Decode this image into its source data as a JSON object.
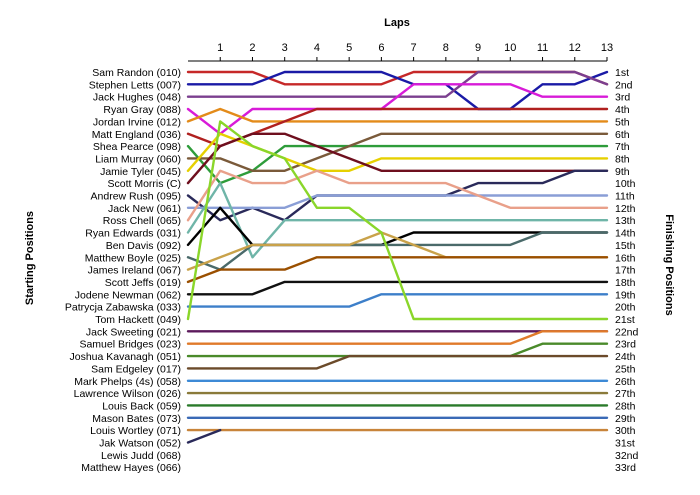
{
  "chart_data": {
    "type": "line",
    "title": "",
    "xlabel": "Laps",
    "ylabel_left": "Starting Positions",
    "ylabel_right": "Finishing Positions",
    "laps": [
      1,
      2,
      3,
      4,
      5,
      6,
      7,
      8,
      9,
      10,
      11,
      12,
      13
    ],
    "xlim": [
      0,
      13
    ],
    "ylim": [
      1,
      33
    ],
    "y_inverted": true,
    "grid": false,
    "starting_grid": [
      "Sam Randon (010)",
      "Stephen Letts (007)",
      "Jack Hughes (048)",
      "Ryan Gray (088)",
      "Jordan Irvine (012)",
      "Matt England (036)",
      "Shea Pearce (098)",
      "Liam Murray (060)",
      "Jamie Tyler (045)",
      "Scott Morris (C)",
      "Andrew Rush (095)",
      "Jack New (061)",
      "Ross Chell (065)",
      "Ryan Edwards (031)",
      "Ben Davis (092)",
      "Matthew Boyle (025)",
      "James Ireland (067)",
      "Scott Jeffs (019)",
      "Jodene Newman (062)",
      "Patrycja Zabawska (033)",
      "Tom Hackett (049)",
      "Jack Sweeting (021)",
      "Samuel Bridges (023)",
      "Joshua Kavanagh (051)",
      "Sam Edgeley (017)",
      "Mark Phelps (4s) (058)",
      "Lawrence Wilson (026)",
      "Louis Back (059)",
      "Mason Bates (073)",
      "Louis Wortley (071)",
      "Jak Watson (052)",
      "Lewis Judd (068)",
      "Matthew Hayes (066)"
    ],
    "finishing_positions": [
      "1st",
      "2nd",
      "3rd",
      "4th",
      "5th",
      "6th",
      "7th",
      "8th",
      "9th",
      "10th",
      "11th",
      "12th",
      "13th",
      "14th",
      "15th",
      "16th",
      "17th",
      "18th",
      "19th",
      "20th",
      "21st",
      "22nd",
      "23rd",
      "24th",
      "25th",
      "26th",
      "27th",
      "28th",
      "29th",
      "30th",
      "31st",
      "32nd",
      "33rd"
    ],
    "series": [
      {
        "start": 1,
        "positions": [
          1,
          1,
          2,
          2,
          2,
          2,
          1,
          1,
          1,
          1,
          1,
          1,
          2
        ],
        "color": "#c62828"
      },
      {
        "start": 2,
        "positions": [
          2,
          2,
          1,
          1,
          1,
          1,
          2,
          2,
          4,
          4,
          2,
          2,
          1
        ],
        "color": "#1a1aa6"
      },
      {
        "start": 3,
        "positions": [
          3,
          3,
          3,
          3,
          3,
          3,
          3,
          3,
          1,
          1,
          1,
          1,
          2
        ],
        "color": "#7b3f8f"
      },
      {
        "start": 4,
        "positions": [
          6,
          4,
          4,
          4,
          4,
          4,
          2,
          2,
          2,
          2,
          3,
          3,
          3
        ],
        "color": "#d81bd8"
      },
      {
        "start": 5,
        "positions": [
          4,
          5,
          5,
          5,
          5,
          5,
          5,
          5,
          5,
          5,
          5,
          5,
          5
        ],
        "color": "#e38b1a"
      },
      {
        "start": 6,
        "positions": [
          7,
          6,
          5,
          4,
          4,
          4,
          4,
          4,
          4,
          4,
          4,
          4,
          4
        ],
        "color": "#b0201f"
      },
      {
        "start": 7,
        "positions": [
          10,
          9,
          7,
          7,
          7,
          7,
          7,
          7,
          7,
          7,
          7,
          7,
          7
        ],
        "color": "#2e9c3a"
      },
      {
        "start": 8,
        "positions": [
          8,
          9,
          9,
          8,
          7,
          6,
          6,
          6,
          6,
          6,
          6,
          6,
          6
        ],
        "color": "#7a5a3a"
      },
      {
        "start": 9,
        "positions": [
          6,
          7,
          8,
          9,
          9,
          8,
          8,
          8,
          8,
          8,
          8,
          8,
          8
        ],
        "color": "#e6d000"
      },
      {
        "start": 10,
        "positions": [
          7,
          6,
          6,
          7,
          8,
          9,
          9,
          9,
          9,
          9,
          9,
          9,
          9
        ],
        "color": "#6e0f1e"
      },
      {
        "start": 11,
        "positions": [
          13,
          12,
          13,
          11,
          11,
          11,
          11,
          11,
          10,
          10,
          10,
          9,
          9
        ],
        "color": "#2a2a5a"
      },
      {
        "start": 12,
        "positions": [
          12,
          12,
          12,
          11,
          11,
          11,
          11,
          11,
          11,
          11,
          11,
          11,
          11
        ],
        "color": "#8a9ed6"
      },
      {
        "start": 13,
        "positions": [
          9,
          10,
          10,
          9,
          10,
          10,
          10,
          10,
          11,
          12,
          12,
          12,
          12
        ],
        "color": "#e9a08a"
      },
      {
        "start": 14,
        "positions": [
          10,
          16,
          13,
          13,
          13,
          13,
          13,
          13,
          13,
          13,
          13,
          13,
          13
        ],
        "color": "#6fb5a8"
      },
      {
        "start": 15,
        "positions": [
          12,
          15,
          15,
          15,
          15,
          15,
          14,
          14,
          14,
          14,
          14,
          14,
          14
        ],
        "color": "#000000"
      },
      {
        "start": 16,
        "positions": [
          17,
          15,
          15,
          15,
          15,
          15,
          15,
          15,
          15,
          15,
          14,
          14,
          14
        ],
        "color": "#4a6a6a"
      },
      {
        "start": 17,
        "positions": [
          16,
          15,
          15,
          15,
          15,
          14,
          15,
          16,
          16,
          16,
          16,
          16,
          16
        ],
        "color": "#c9a24a"
      },
      {
        "start": 18,
        "positions": [
          17,
          17,
          17,
          16,
          16,
          16,
          16,
          16,
          16,
          16,
          16,
          16,
          16
        ],
        "color": "#9a4f00"
      },
      {
        "start": 19,
        "positions": [
          19,
          19,
          18,
          18,
          18,
          18,
          18,
          18,
          18,
          18,
          18,
          18,
          18
        ],
        "color": "#111111"
      },
      {
        "start": 20,
        "positions": [
          20,
          20,
          20,
          20,
          20,
          19,
          19,
          19,
          19,
          19,
          19,
          19,
          19
        ],
        "color": "#3d7fc9"
      },
      {
        "start": 21,
        "positions": [
          5,
          7,
          8,
          12,
          12,
          14,
          21,
          21,
          21,
          21,
          21,
          21,
          21
        ],
        "color": "#8ad62a"
      },
      {
        "start": 22,
        "positions": [
          22,
          22,
          22,
          22,
          22,
          22,
          22,
          22,
          22,
          22,
          22,
          22,
          22
        ],
        "color": "#5c1a5c"
      },
      {
        "start": 23,
        "positions": [
          23,
          23,
          23,
          23,
          23,
          23,
          23,
          23,
          23,
          23,
          22,
          22,
          22
        ],
        "color": "#e07a2a"
      },
      {
        "start": 24,
        "positions": [
          24,
          24,
          24,
          24,
          24,
          24,
          24,
          24,
          24,
          24,
          23,
          23,
          23
        ],
        "color": "#4a8a2a"
      },
      {
        "start": 25,
        "positions": [
          25,
          25,
          25,
          25,
          24,
          24,
          24,
          24,
          24,
          24,
          24,
          24,
          24
        ],
        "color": "#6b4a2a"
      },
      {
        "start": 26,
        "positions": [
          26,
          26,
          26,
          26,
          26,
          26,
          26,
          26,
          26,
          26,
          26,
          26,
          26
        ],
        "color": "#3d8ad6"
      },
      {
        "start": 27,
        "positions": [
          27,
          27,
          27,
          27,
          27,
          27,
          27,
          27,
          27,
          27,
          27,
          27,
          27
        ],
        "color": "#8a7a3a"
      },
      {
        "start": 28,
        "positions": [
          28,
          28,
          28,
          28,
          28,
          28,
          28,
          28,
          28,
          28,
          28,
          28,
          28
        ],
        "color": "#2a7a2a"
      },
      {
        "start": 29,
        "positions": [
          29,
          29,
          29,
          29,
          29,
          29,
          29,
          29,
          29,
          29,
          29,
          29,
          29
        ],
        "color": "#3a6ab6"
      },
      {
        "start": 30,
        "positions": [
          30,
          30,
          30,
          30,
          30,
          30,
          30,
          30,
          30,
          30,
          30,
          30,
          30
        ],
        "color": "#c8843a"
      },
      {
        "start": 31,
        "positions": [
          30
        ],
        "color": "#2a2a5a"
      }
    ]
  }
}
